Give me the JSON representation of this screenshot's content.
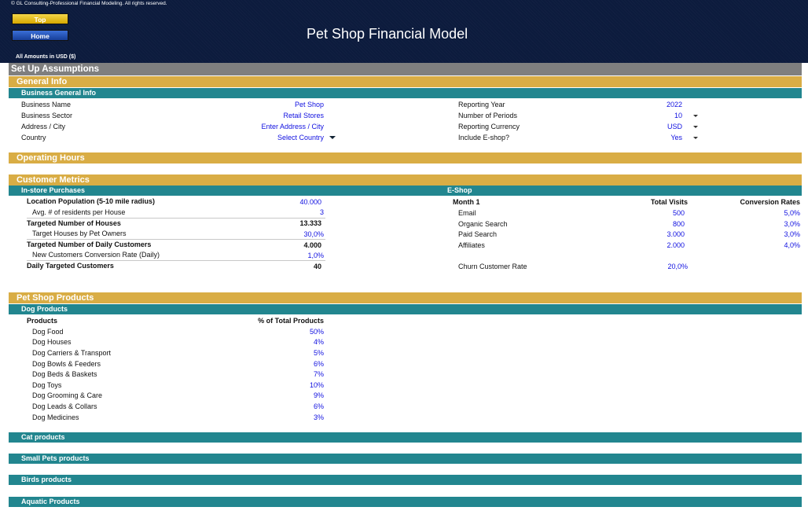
{
  "header": {
    "copyright": "© GL Consulting-Professional Financial Modeling. All rights reserved.",
    "top_button": "Top",
    "home_button": "Home",
    "title": "Pet Shop Financial Model",
    "amounts_note": "All Amounts in USD ($)"
  },
  "sections": {
    "setup": "Set Up Assumptions",
    "general_info": "General Info",
    "business_general_info": "Business General Info",
    "operating_hours": "Operating Hours",
    "customer_metrics": "Customer Metrics",
    "instore": "In-store Purchases",
    "eshop": "E-Shop",
    "pet_shop_products": "Pet Shop Products",
    "dog_products": "Dog Products",
    "cat_products": "Cat products",
    "small_pets_products": "Small Pets products",
    "birds_products": "Birds products",
    "aquatic_products": "Aquatic Products"
  },
  "business": {
    "name_label": "Business Name",
    "name_value": "Pet Shop",
    "sector_label": "Business Sector",
    "sector_value": "Retail Stores",
    "address_label": "Address / City",
    "address_value": "Enter Address / City",
    "country_label": "Country",
    "country_value": "Select Country",
    "year_label": "Reporting Year",
    "year_value": "2022",
    "periods_label": "Number of Periods",
    "periods_value": "10",
    "currency_label": "Reporting Currency",
    "currency_value": "USD",
    "eshop_label": "Include E-shop?",
    "eshop_value": "Yes"
  },
  "instore": {
    "location_pop_label": "Location Population (5-10 mile radius)",
    "location_pop_value": "40.000",
    "residents_label": "Avg. # of residents per House",
    "residents_value": "3",
    "targeted_houses_label": "Targeted Number of Houses",
    "targeted_houses_value": "13.333",
    "target_pet_label": "Target Houses by Pet Owners",
    "target_pet_value": "30,0%",
    "daily_customers_label": "Targeted Number of Daily Customers",
    "daily_customers_value": "4.000",
    "conversion_label": "New Customers Conversion Rate (Daily)",
    "conversion_value": "1,0%",
    "daily_targeted_label": "Daily Targeted Customers",
    "daily_targeted_value": "40"
  },
  "eshop": {
    "month_header": "Month 1",
    "visits_header": "Total Visits",
    "conversion_header": "Conversion Rates",
    "rows": [
      {
        "label": "Email",
        "visits": "500",
        "rate": "5,0%"
      },
      {
        "label": "Organic Search",
        "visits": "800",
        "rate": "3,0%"
      },
      {
        "label": "Paid Search",
        "visits": "3.000",
        "rate": "3,0%"
      },
      {
        "label": "Affiliates",
        "visits": "2.000",
        "rate": "4,0%"
      }
    ],
    "churn_label": "Churn Customer Rate",
    "churn_value": "20,0%"
  },
  "dog": {
    "products_header": "Products",
    "pct_header": "% of Total Products",
    "items": [
      {
        "name": "Dog Food",
        "pct": "50%"
      },
      {
        "name": "Dog Houses",
        "pct": "4%"
      },
      {
        "name": "Dog Carriers & Transport",
        "pct": "5%"
      },
      {
        "name": "Dog Bowls & Feeders",
        "pct": "6%"
      },
      {
        "name": "Dog Beds & Baskets",
        "pct": "7%"
      },
      {
        "name": "Dog Toys",
        "pct": "10%"
      },
      {
        "name": "Dog Grooming & Care",
        "pct": "9%"
      },
      {
        "name": "Dog Leads & Collars",
        "pct": "6%"
      },
      {
        "name": "Dog Medicines",
        "pct": "3%"
      }
    ]
  }
}
